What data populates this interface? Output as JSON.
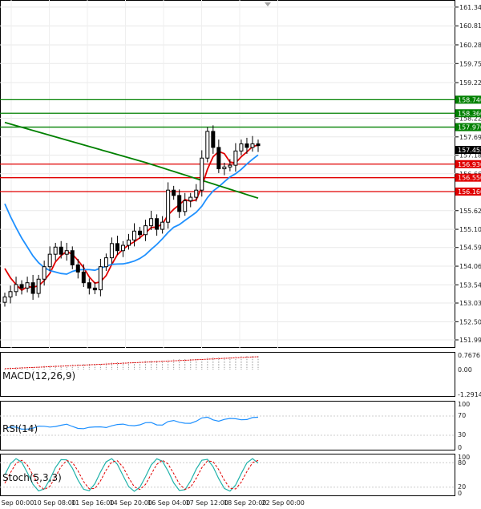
{
  "chart_data": {
    "type": "candlestick",
    "price_axis": {
      "ylim": [
        151.77,
        161.54
      ],
      "ticks": [
        "161.340",
        "160.815",
        "160.280",
        "159.755",
        "159.220",
        "158.220",
        "157.695",
        "157.185",
        "156.660",
        "155.625",
        "155.100",
        "154.590",
        "154.065",
        "153.540",
        "153.030",
        "152.505",
        "151.995"
      ]
    },
    "time_axis": {
      "labels": [
        "9 Sep 00:00",
        "10 Sep 08:00",
        "11 Sep 16:00",
        "14 Sep 20:00",
        "16 Sep 04:00",
        "17 Sep 12:00",
        "18 Sep 20:00",
        "22 Sep 00:00"
      ]
    },
    "current_price": "157.452",
    "level_labels": [
      "158.740",
      "158.360",
      "157.970",
      "156.930",
      "156.550",
      "156.160"
    ],
    "level_colors": {
      "support": "#e00000",
      "resistance": "#008000"
    },
    "levels": [
      {
        "value": 158.74,
        "type": "resistance"
      },
      {
        "value": 158.36,
        "type": "resistance"
      },
      {
        "value": 157.97,
        "type": "resistance"
      },
      {
        "value": 156.93,
        "type": "support"
      },
      {
        "value": 156.55,
        "type": "support"
      },
      {
        "value": 156.16,
        "type": "support"
      }
    ],
    "closes": [
      153.2,
      153.35,
      153.55,
      153.45,
      153.6,
      153.3,
      153.7,
      154.05,
      154.4,
      154.6,
      154.4,
      154.5,
      154.1,
      153.9,
      153.6,
      153.45,
      153.4,
      154.05,
      154.3,
      154.7,
      154.5,
      154.65,
      154.8,
      155.05,
      154.95,
      155.2,
      155.4,
      155.1,
      155.3,
      156.2,
      156.05,
      155.6,
      155.9,
      156.0,
      156.2,
      157.1,
      157.85,
      157.4,
      156.8,
      156.85,
      156.9,
      157.3,
      157.5,
      157.4,
      157.5,
      157.45
    ],
    "ma_red_colors": "#e00000",
    "ma_blue_colors": "#1e90ff",
    "ma_green_colors": "#008000",
    "indicators": {
      "macd": {
        "name": "MACD(12,26,9)",
        "ticks": [
          "0.7676",
          "0.00",
          "-1.2914"
        ]
      },
      "rsi": {
        "name": "RSI(14)",
        "ticks": [
          "100",
          "70",
          "30",
          "0"
        ]
      },
      "stoch": {
        "name": "Stoch(5,3,3)",
        "ticks": [
          "100",
          "80",
          "20",
          "0"
        ]
      }
    }
  }
}
